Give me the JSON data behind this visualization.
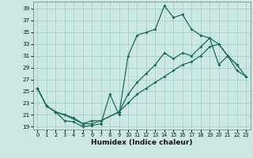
{
  "bg_color": "#cce8e5",
  "grid_color": "#aacece",
  "line_color": "#1a6b5a",
  "xlabel": "Humidex (Indice chaleur)",
  "xlim": [
    -0.5,
    23.5
  ],
  "ylim": [
    18.5,
    40.2
  ],
  "xticks": [
    0,
    1,
    2,
    3,
    4,
    5,
    6,
    7,
    8,
    9,
    10,
    11,
    12,
    13,
    14,
    15,
    16,
    17,
    18,
    19,
    20,
    21,
    22,
    23
  ],
  "yticks": [
    19,
    21,
    23,
    25,
    27,
    29,
    31,
    33,
    35,
    37,
    39
  ],
  "line1_x": [
    0,
    1,
    2,
    3,
    4,
    5,
    6,
    7,
    8,
    9,
    10,
    11,
    12,
    13,
    14,
    15,
    16,
    17,
    18,
    19,
    20,
    21,
    22
  ],
  "line1_y": [
    25.5,
    22.5,
    21.5,
    20.0,
    19.8,
    19.0,
    19.2,
    19.5,
    24.5,
    21.0,
    31.0,
    34.5,
    35.0,
    35.5,
    39.5,
    37.5,
    38.0,
    35.5,
    34.5,
    34.0,
    29.5,
    31.0,
    29.5
  ],
  "line2_x": [
    0,
    1,
    2,
    3,
    5,
    6,
    7,
    9,
    10,
    11,
    12,
    13,
    14,
    15,
    16,
    17,
    18,
    19,
    20,
    21,
    22,
    23
  ],
  "line2_y": [
    25.5,
    22.5,
    21.5,
    21.0,
    19.5,
    20.0,
    20.0,
    21.5,
    24.5,
    26.5,
    28.0,
    29.5,
    31.5,
    30.5,
    31.5,
    31.0,
    32.5,
    34.0,
    33.0,
    31.0,
    29.5,
    27.5
  ],
  "line3_x": [
    0,
    1,
    2,
    3,
    4,
    5,
    6,
    7,
    9,
    10,
    11,
    12,
    13,
    14,
    15,
    16,
    17,
    18,
    19,
    20,
    21,
    22,
    23
  ],
  "line3_y": [
    25.5,
    22.5,
    21.5,
    21.0,
    20.5,
    19.5,
    19.5,
    20.0,
    21.5,
    23.0,
    24.5,
    25.5,
    26.5,
    27.5,
    28.5,
    29.5,
    30.0,
    31.0,
    32.5,
    33.0,
    31.0,
    28.5,
    27.5
  ]
}
